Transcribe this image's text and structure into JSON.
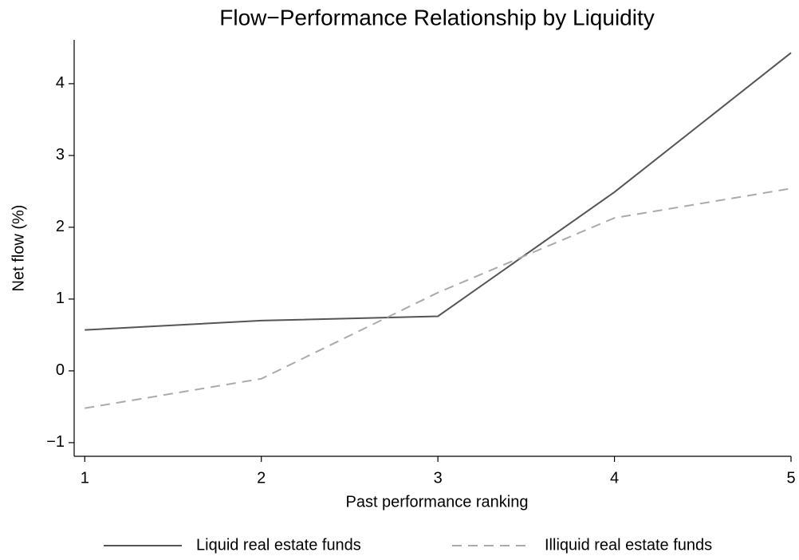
{
  "chart_data": {
    "type": "line",
    "title": "Flow−Performance Relationship by Liquidity",
    "x_label": "Past performance ranking",
    "y_label": "Net flow (%)",
    "x": [
      1,
      2,
      3,
      4,
      5
    ],
    "series": [
      {
        "name": "Liquid real estate funds",
        "color": "#555555",
        "line_style": "solid",
        "values": [
          0.57,
          0.7,
          0.76,
          2.49,
          4.43
        ]
      },
      {
        "name": "Illiquid real estate funds",
        "color": "#aaaaaa",
        "line_style": "dashed",
        "values": [
          -0.52,
          -0.11,
          1.09,
          2.13,
          2.54
        ]
      }
    ],
    "xlim": [
      0.94,
      5
    ],
    "xticks": [
      1,
      2,
      3,
      4,
      5
    ],
    "ylim": [
      -1.19,
      4.61
    ],
    "yticks": [
      {
        "value": -1,
        "label": "−1"
      },
      0,
      1,
      2,
      3,
      4
    ],
    "grid": false,
    "legend": "bottom"
  }
}
